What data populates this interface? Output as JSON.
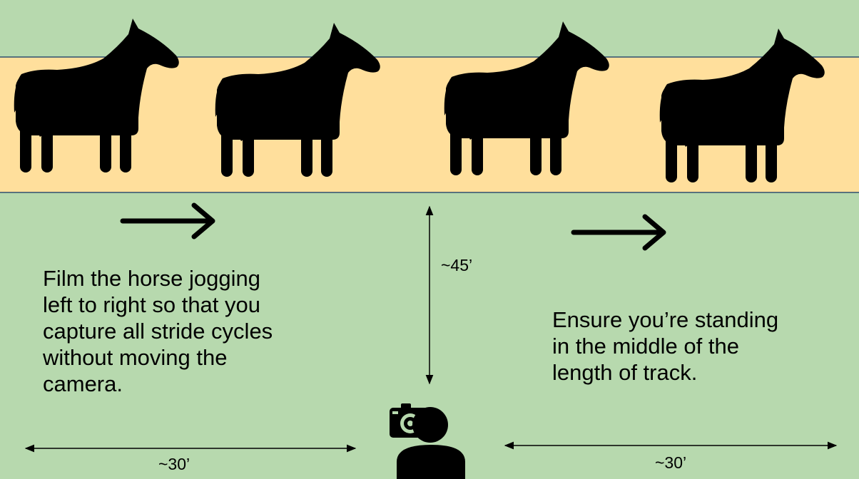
{
  "instructions": {
    "left": "Film the horse jogging\nleft to right so that you\ncapture all stride cycles\nwithout moving the\ncamera.",
    "right": "Ensure you’re standing\nin the middle of the\nlength of track."
  },
  "dimensions": {
    "distance_to_track": "~45’",
    "left_span": "~30’",
    "right_span": "~30’"
  },
  "colors": {
    "field": "#b7d9ae",
    "track": "#ffdf9c",
    "track_line": "#2e4f6e",
    "silhouette": "#000000"
  },
  "icons": [
    "horse-silhouette-icon",
    "right-arrow-icon",
    "camera-icon",
    "person-icon"
  ]
}
